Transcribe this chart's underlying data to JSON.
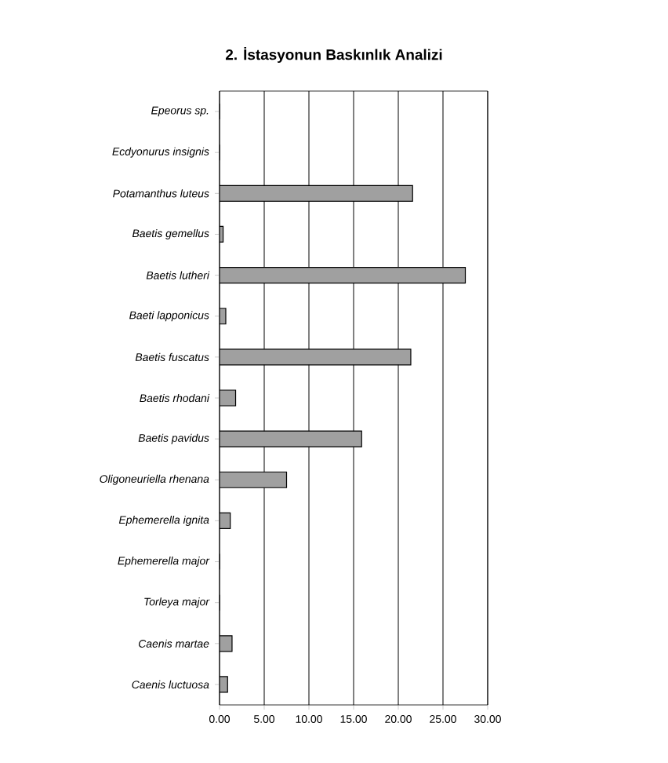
{
  "chart_data": {
    "type": "bar",
    "orientation": "horizontal",
    "title": "2. İstasyonun Baskınlık Analizi",
    "categories": [
      "Epeorus sp.",
      "Ecdyonurus insignis",
      "Potamanthus luteus",
      "Baetis gemellus",
      "Baetis lutheri",
      "Baeti lapponicus",
      "Baetis fuscatus",
      "Baetis rhodani",
      "Baetis pavidus",
      "Oligoneuriella rhenana",
      "Ephemerella ignita",
      "Ephemerella major",
      "Torleya major",
      "Caenis martae",
      "Caenis luctuosa"
    ],
    "values": [
      0,
      0,
      21.6,
      0.4,
      27.5,
      0.7,
      21.4,
      1.8,
      15.9,
      7.5,
      1.2,
      0,
      0,
      1.4,
      0.9
    ],
    "color": "#a0a0a0",
    "xlim": [
      0,
      30
    ],
    "xticks": [
      {
        "value": 0,
        "label": "0.00"
      },
      {
        "value": 5,
        "label": "5.00"
      },
      {
        "value": 10,
        "label": "10.00"
      },
      {
        "value": 15,
        "label": "15.00"
      },
      {
        "value": 20,
        "label": "20.00"
      },
      {
        "value": 25,
        "label": "25.00"
      },
      {
        "value": 30,
        "label": "30.00"
      }
    ],
    "grid": "x"
  }
}
